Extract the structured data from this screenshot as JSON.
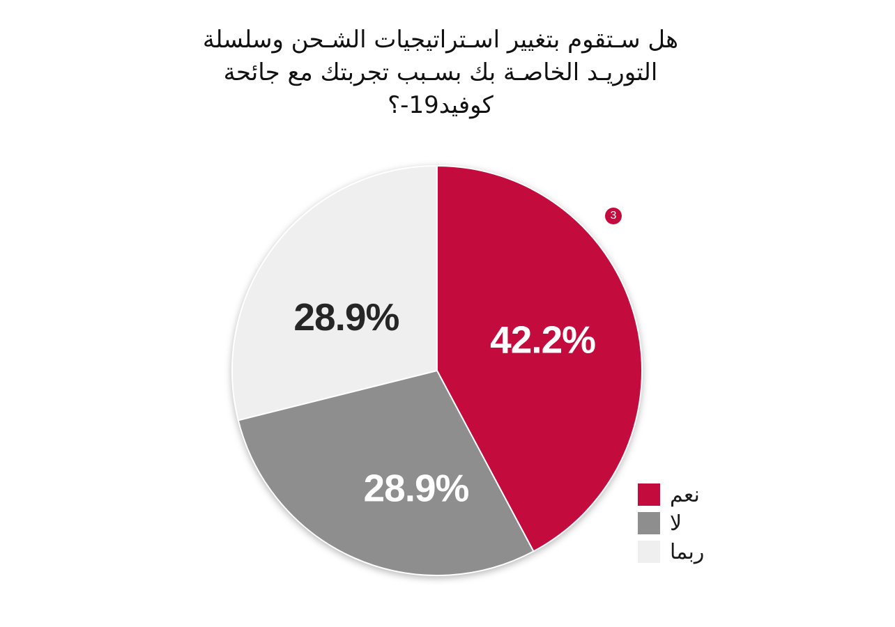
{
  "page": {
    "background": "#ffffff"
  },
  "title": {
    "lines": [
      "هل سـتقوم بتغيير اسـتراتيجيات الشـحن وسلسلة",
      "التوريـد الخاصـة بك بسـبب تجربتك مع جائحة",
      "كوفيد19-؟"
    ],
    "color": "#111111"
  },
  "annotation_badge": {
    "value": "3",
    "background": "#C30C3D",
    "text_color": "#FFFFFF"
  },
  "chart_data": {
    "type": "pie",
    "title": "هل ستقوم بتغيير استراتيجيات الشحن وسلسلة التوريد الخاصة بك بسبب تجربتك مع جائحة كوفيد-19؟",
    "slices": [
      {
        "label": "نعم",
        "value": 42.2,
        "display": "42.2%",
        "color": "#C30C3D",
        "label_color": "#FFFFFF"
      },
      {
        "label": "لا",
        "value": 28.9,
        "display": "28.9%",
        "color": "#8E8E8E",
        "label_color": "#FFFFFF"
      },
      {
        "label": "ربما",
        "value": 28.9,
        "display": "28.9%",
        "color": "#EFEFEF",
        "label_color": "#262626"
      }
    ],
    "total": 100,
    "start_angle_deg": 0,
    "direction": "clockwise",
    "legend_position": "right",
    "slice_separator_color": "#FFFFFF"
  }
}
